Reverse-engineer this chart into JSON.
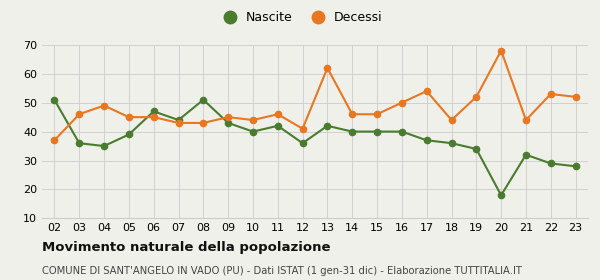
{
  "years": [
    "02",
    "03",
    "04",
    "05",
    "06",
    "07",
    "08",
    "09",
    "10",
    "11",
    "12",
    "13",
    "14",
    "15",
    "16",
    "17",
    "18",
    "19",
    "20",
    "21",
    "22",
    "23"
  ],
  "nascite": [
    51,
    36,
    35,
    39,
    47,
    44,
    51,
    43,
    40,
    42,
    36,
    42,
    40,
    40,
    40,
    37,
    36,
    34,
    18,
    32,
    29,
    28
  ],
  "decessi": [
    37,
    46,
    49,
    45,
    45,
    43,
    43,
    45,
    44,
    46,
    41,
    62,
    46,
    46,
    50,
    54,
    44,
    52,
    68,
    44,
    53,
    52
  ],
  "nascite_color": "#4a7c2f",
  "decessi_color": "#e87722",
  "bg_color": "#f0f0eb",
  "grid_color": "#cccccc",
  "ylim": [
    10,
    70
  ],
  "yticks": [
    10,
    20,
    30,
    40,
    50,
    60,
    70
  ],
  "title": "Movimento naturale della popolazione",
  "subtitle": "COMUNE DI SANT'ANGELO IN VADO (PU) - Dati ISTAT (1 gen-31 dic) - Elaborazione TUTTITALIA.IT",
  "legend_nascite": "Nascite",
  "legend_decessi": "Decessi",
  "title_fontsize": 9.5,
  "subtitle_fontsize": 7.2,
  "tick_fontsize": 8,
  "marker_size": 4.5,
  "linewidth": 1.5
}
